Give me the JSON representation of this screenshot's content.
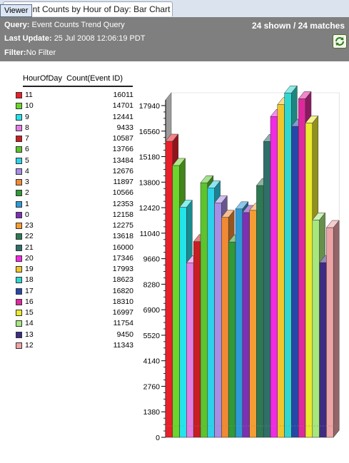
{
  "tab": {
    "title": "Event Counts by Hour of Day: Bar Chart"
  },
  "tooltip": {
    "label": "Viewer"
  },
  "header": {
    "query_label": "Query:",
    "query_value": "Event Counts Trend Query",
    "update_label": "Last Update:",
    "update_value": "25 Jul 2008 12:06:19 PDT",
    "filter_label": "Filter:",
    "filter_value": "No Filter",
    "counts": "24 shown / 24 matches",
    "refresh_icon": "refresh-icon"
  },
  "legend": {
    "col1": "HourOfDay",
    "col2": "Count(Event ID)"
  },
  "chart_data": {
    "type": "bar",
    "xlabel": "HourOfDay",
    "ylabel": "Count(Event ID)",
    "ylim": [
      0,
      17940
    ],
    "yticks": [
      0,
      1380,
      2760,
      4140,
      5520,
      6900,
      8280,
      9660,
      11040,
      12420,
      13800,
      15180,
      16560,
      17940
    ],
    "grid": false,
    "categories": [
      "11",
      "10",
      "9",
      "8",
      "7",
      "6",
      "5",
      "4",
      "3",
      "2",
      "1",
      "0",
      "23",
      "22",
      "21",
      "20",
      "19",
      "18",
      "17",
      "16",
      "15",
      "14",
      "13",
      "12"
    ],
    "values": [
      16011,
      14701,
      12441,
      9433,
      10587,
      13766,
      13484,
      12676,
      11897,
      10566,
      12353,
      12158,
      12275,
      13618,
      16000,
      17346,
      17993,
      18623,
      16820,
      18310,
      16997,
      11754,
      9450,
      11343
    ],
    "colors": [
      "#e8202a",
      "#6ad72a",
      "#24e3ea",
      "#e27ee6",
      "#c81e22",
      "#5cc42c",
      "#2cd2ea",
      "#a88de6",
      "#f08a34",
      "#2f9a36",
      "#2d9ad6",
      "#7d2fb5",
      "#f59d33",
      "#2d7a52",
      "#2f6f6a",
      "#f22ae4",
      "#f0c62b",
      "#2ed8d0",
      "#2548a8",
      "#e0289e",
      "#eaea2e",
      "#a6e87c",
      "#3e2b82",
      "#eea3a6"
    ]
  }
}
